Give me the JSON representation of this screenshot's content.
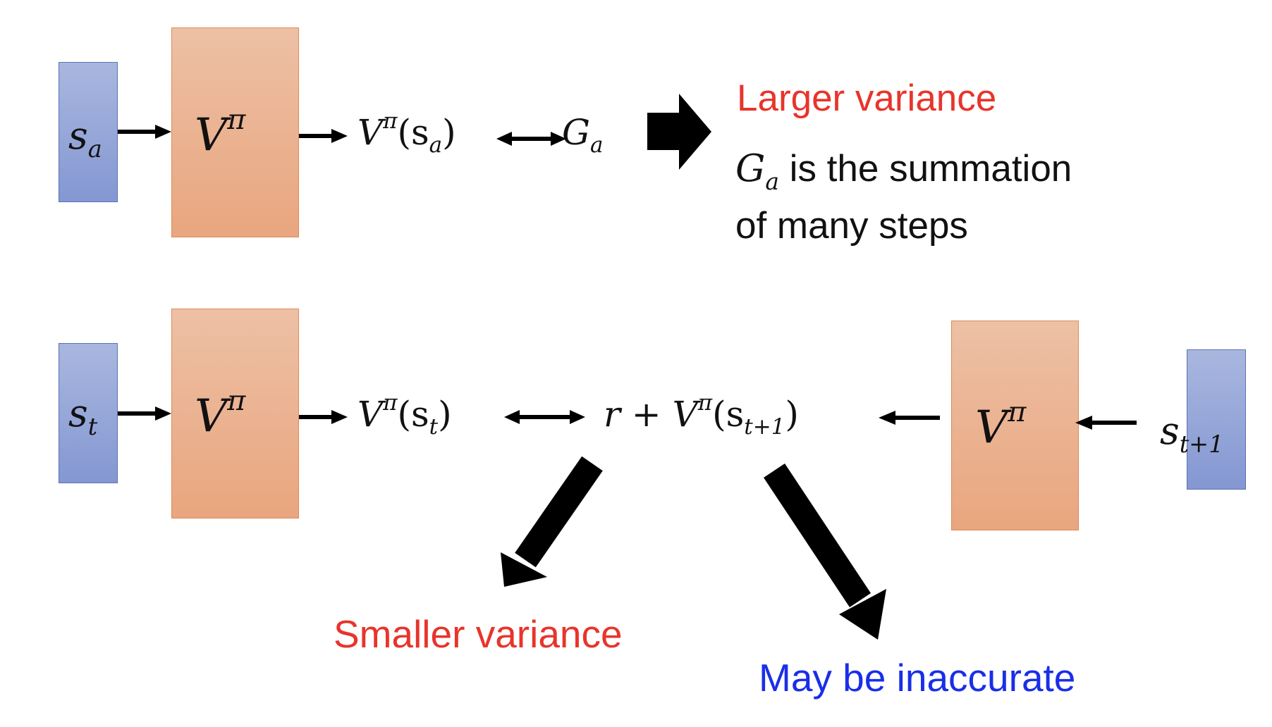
{
  "colors": {
    "state_fill": "#8f9fd6",
    "network_fill": "#eab08c",
    "red_note": "#e8342b",
    "blue_note": "#1a2ee8",
    "text": "#111111",
    "arrow": "#000000"
  },
  "top_row": {
    "state_symbol": "s",
    "state_sub": "a",
    "network_symbol": "V",
    "network_sup": "π",
    "value_symbol": "V",
    "value_sup": "π",
    "value_arg_open": "(s",
    "value_arg_sub": "a",
    "value_arg_close": ")",
    "target_symbol": "G",
    "target_sub": "a",
    "note_title": "Larger variance",
    "note_symbol": "G",
    "note_sub": "a",
    "note_line1_rest": " is the summation",
    "note_line2": "of many steps"
  },
  "bottom_row": {
    "state_symbol": "s",
    "state_sub": "t",
    "network_symbol": "V",
    "network_sup": "π",
    "value_symbol": "V",
    "value_sup": "π",
    "value_arg_open": "(s",
    "value_arg_sub": "t",
    "value_arg_close": ")",
    "target_r": "r",
    "target_plus": " + ",
    "target_symbol": "V",
    "target_sup": "π",
    "target_arg_open": "(s",
    "target_arg_sub": "t+1",
    "target_arg_close": ")",
    "next_network_symbol": "V",
    "next_network_sup": "π",
    "next_state_symbol": "s",
    "next_state_sub": "t+1",
    "left_note": "Smaller variance",
    "right_note": "May be inaccurate"
  }
}
